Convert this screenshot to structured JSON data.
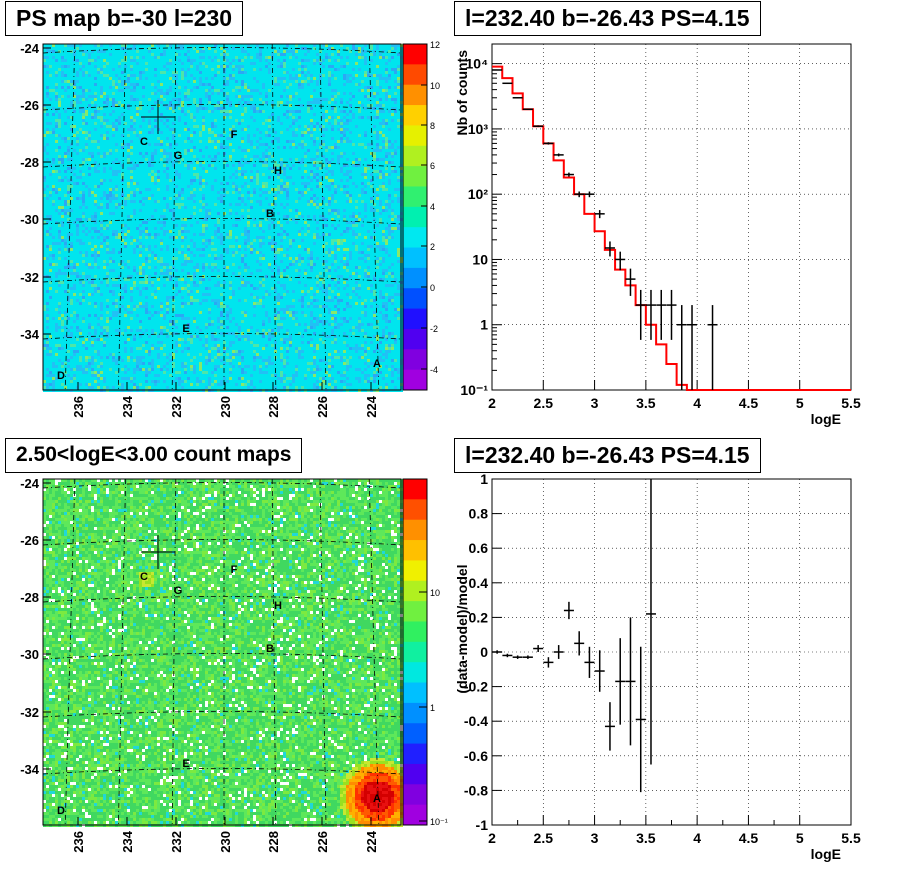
{
  "chart_data": [
    {
      "type": "heatmap",
      "title": "PS map b=-30 l=230",
      "x_ticks": [
        "236",
        "234",
        "232",
        "230",
        "228",
        "226",
        "224"
      ],
      "y_ticks": [
        "-24",
        "-26",
        "-28",
        "-30",
        "-32",
        "-34"
      ],
      "colorbar_ticks": [
        "12",
        "10",
        "8",
        "6",
        "4",
        "2",
        "0",
        "-2",
        "-4"
      ],
      "colorbar_range": [
        -5,
        12
      ],
      "sources": [
        "A",
        "B",
        "C",
        "D",
        "E",
        "F",
        "G",
        "H"
      ],
      "cross_marker": true
    },
    {
      "type": "line",
      "title": "l=232.40 b=-26.43 PS=4.15",
      "xlabel": "logE",
      "ylabel": "Nb of counts",
      "log_y": true,
      "xlim": [
        2,
        5.5
      ],
      "ylim": [
        0.1,
        20000
      ],
      "x_ticks": [
        "2",
        "2.5",
        "3",
        "3.5",
        "4",
        "4.5",
        "5",
        "5.5"
      ],
      "y_ticks": [
        "10⁴",
        "10³",
        "10²",
        "10",
        "1",
        "10⁻¹"
      ],
      "grid": true,
      "model_bin_edges": [
        2,
        2.1,
        2.2,
        2.3,
        2.4,
        2.5,
        2.6,
        2.7,
        2.8,
        2.9,
        3.0,
        3.1,
        3.2,
        3.3,
        3.4,
        3.5,
        3.6,
        3.7,
        3.8,
        3.9,
        4.0,
        5.5
      ],
      "model_values": [
        9000,
        6000,
        3500,
        2000,
        1100,
        600,
        330,
        180,
        100,
        50,
        27,
        14,
        7,
        4,
        2,
        1,
        0.5,
        0.25,
        0.12,
        0.06,
        0.05
      ],
      "data_points": [
        {
          "x": 2.05,
          "y": 8000
        },
        {
          "x": 2.15,
          "y": 5000
        },
        {
          "x": 2.25,
          "y": 3000
        },
        {
          "x": 2.35,
          "y": 2000
        },
        {
          "x": 2.45,
          "y": 1100
        },
        {
          "x": 2.55,
          "y": 600
        },
        {
          "x": 2.65,
          "y": 400
        },
        {
          "x": 2.75,
          "y": 200
        },
        {
          "x": 2.85,
          "y": 100
        },
        {
          "x": 2.95,
          "y": 100
        },
        {
          "x": 3.05,
          "y": 50
        },
        {
          "x": 3.15,
          "y": 15
        },
        {
          "x": 3.25,
          "y": 10
        },
        {
          "x": 3.35,
          "y": 5
        },
        {
          "x": 3.45,
          "y": 2
        },
        {
          "x": 3.55,
          "y": 2
        },
        {
          "x": 3.65,
          "y": 2
        },
        {
          "x": 3.75,
          "y": 2
        },
        {
          "x": 3.85,
          "y": 1
        },
        {
          "x": 3.95,
          "y": 1
        },
        {
          "x": 4.15,
          "y": 1
        }
      ]
    },
    {
      "type": "heatmap",
      "title": "2.50<logE<3.00 count maps",
      "x_ticks": [
        "236",
        "234",
        "232",
        "230",
        "228",
        "226",
        "224"
      ],
      "y_ticks": [
        "-24",
        "-26",
        "-28",
        "-30",
        "-32",
        "-34"
      ],
      "colorbar_ticks": [
        "10",
        "1",
        "10⁻¹"
      ],
      "colorbar_log": true,
      "sources": [
        "A",
        "B",
        "C",
        "D",
        "E",
        "F",
        "G",
        "H"
      ],
      "cross_marker": true
    },
    {
      "type": "scatter",
      "title": "l=232.40 b=-26.43 PS=4.15",
      "xlabel": "logE",
      "ylabel": "(data-model)/model",
      "xlim": [
        2,
        5.5
      ],
      "ylim": [
        -1,
        1
      ],
      "x_ticks": [
        "2",
        "2.5",
        "3",
        "3.5",
        "4",
        "4.5",
        "5",
        "5.5"
      ],
      "y_ticks": [
        "1",
        "0.8",
        "0.6",
        "0.4",
        "0.2",
        "0",
        "-0.2",
        "-0.4",
        "-0.6",
        "-0.8",
        "-1"
      ],
      "grid": true,
      "points": [
        {
          "x": 2.05,
          "y": 0.0,
          "err": 0.01
        },
        {
          "x": 2.15,
          "y": -0.02,
          "err": 0.01
        },
        {
          "x": 2.25,
          "y": -0.03,
          "err": 0.01
        },
        {
          "x": 2.35,
          "y": -0.03,
          "err": 0.01
        },
        {
          "x": 2.45,
          "y": 0.02,
          "err": 0.02
        },
        {
          "x": 2.55,
          "y": -0.06,
          "err": 0.03
        },
        {
          "x": 2.65,
          "y": 0.0,
          "err": 0.04
        },
        {
          "x": 2.75,
          "y": 0.24,
          "err": 0.05
        },
        {
          "x": 2.85,
          "y": 0.05,
          "err": 0.07
        },
        {
          "x": 2.95,
          "y": -0.06,
          "err": 0.09
        },
        {
          "x": 3.05,
          "y": -0.11,
          "err": 0.12
        },
        {
          "x": 3.15,
          "y": -0.43,
          "err": 0.14
        },
        {
          "x": 3.25,
          "y": -0.17,
          "err": 0.25
        },
        {
          "x": 3.35,
          "y": -0.17,
          "err": 0.37
        },
        {
          "x": 3.45,
          "y": -0.39,
          "err": 0.42
        },
        {
          "x": 3.55,
          "y": 0.22,
          "err": 0.87
        }
      ]
    }
  ],
  "source_markers": {
    "top": [
      {
        "id": "A",
        "l": 224.0,
        "b": -34.6
      },
      {
        "id": "B",
        "l": 228.1,
        "b": -29.8
      },
      {
        "id": "C",
        "l": 233.2,
        "b": -27.2
      },
      {
        "id": "D",
        "l": 236.9,
        "b": -35.2
      },
      {
        "id": "E",
        "l": 231.9,
        "b": -33.8
      },
      {
        "id": "F",
        "l": 229.8,
        "b": -26.9
      },
      {
        "id": "G",
        "l": 232.0,
        "b": -27.8
      },
      {
        "id": "H",
        "l": 227.9,
        "b": -28.4
      }
    ],
    "cross": {
      "l": 232.6,
      "b": -26.45
    }
  },
  "colors": {
    "model_line": "#ff0000",
    "data": "#000000",
    "background_map_top": "#00e8f0",
    "background_map_bottom": "#3dd96a"
  }
}
